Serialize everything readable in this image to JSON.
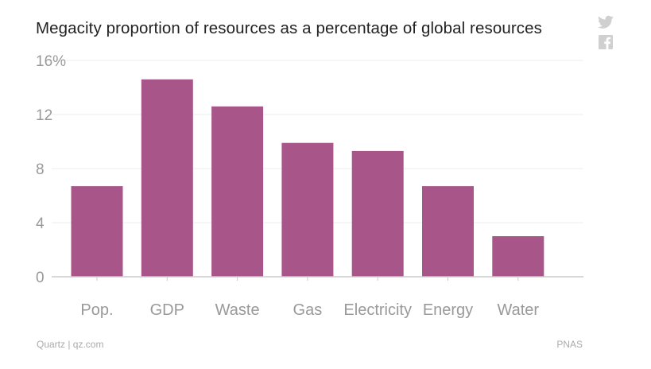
{
  "chart_data": {
    "type": "bar",
    "title": "Megacity proportion of resources as a percentage of global resources",
    "categories": [
      "Pop.",
      "GDP",
      "Waste",
      "Gas",
      "Electricity",
      "Energy",
      "Water"
    ],
    "values": [
      6.7,
      14.6,
      12.6,
      9.9,
      9.3,
      6.7,
      3.0
    ],
    "ylim": [
      0,
      16
    ],
    "yticks": [
      0,
      4,
      8,
      12,
      16
    ],
    "ytick_labels": [
      "0",
      "4",
      "8",
      "12",
      "16%"
    ],
    "xlabel": "",
    "ylabel": "",
    "grid": true,
    "bar_color": "#a8568a"
  },
  "footer": {
    "credit": "Quartz | qz.com",
    "source": "PNAS"
  },
  "social": [
    "twitter-icon",
    "facebook-icon"
  ]
}
